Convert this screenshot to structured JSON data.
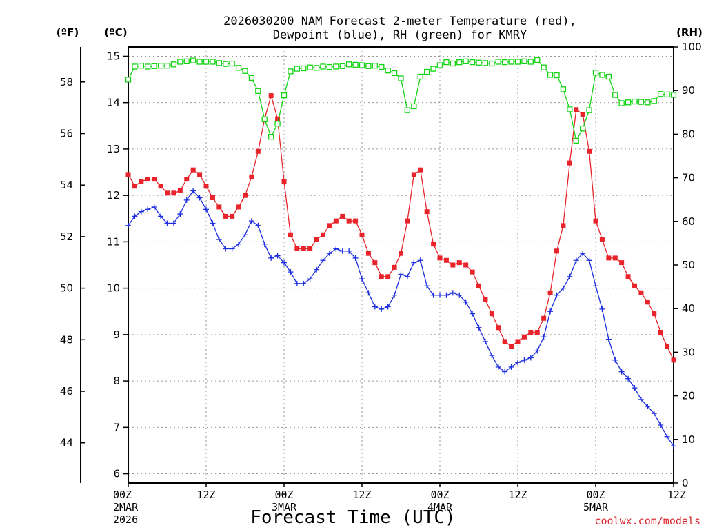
{
  "title_line1": "2026030200 NAM Forecast 2-meter Temperature (red),",
  "title_line2": "Dewpoint (blue), RH (green) for KMRY",
  "unit_f": "(ºF)",
  "unit_c": "(ºC)",
  "unit_rh": "(RH)",
  "xlabel": "Forecast Time (UTC)",
  "credit": "coolwx.com/models",
  "colors": {
    "temperature": "#e8232a",
    "dewpoint": "#1c2ee0",
    "rh": "#12d312",
    "grid": "#9a9a9a"
  },
  "chart_data": {
    "type": "line",
    "x_unit": "forecast hour from 2026-03-02 00Z, 1-hourly",
    "x_range": [
      0,
      84
    ],
    "x_ticks": [
      {
        "hour": 0,
        "label": "00Z",
        "date": "2MAR",
        "year": "2026"
      },
      {
        "hour": 12,
        "label": "12Z"
      },
      {
        "hour": 24,
        "label": "00Z",
        "date": "3MAR"
      },
      {
        "hour": 36,
        "label": "12Z"
      },
      {
        "hour": 48,
        "label": "00Z",
        "date": "4MAR"
      },
      {
        "hour": 60,
        "label": "12Z"
      },
      {
        "hour": 72,
        "label": "00Z",
        "date": "5MAR"
      },
      {
        "hour": 84,
        "label": "12Z"
      }
    ],
    "y_celsius": {
      "range": [
        5.8,
        15.2
      ],
      "ticks": [
        6,
        7,
        8,
        9,
        10,
        11,
        12,
        13,
        14,
        15
      ]
    },
    "y_fahrenheit": {
      "ticks": [
        44,
        46,
        48,
        50,
        52,
        54,
        56,
        58
      ]
    },
    "y_rh": {
      "range": [
        0,
        100
      ],
      "ticks": [
        0,
        10,
        20,
        30,
        40,
        50,
        60,
        70,
        80,
        90,
        100
      ]
    },
    "grid": true,
    "series": [
      {
        "key": "temperature",
        "axis": "celsius",
        "marker": "filled-square",
        "values": [
          12.45,
          12.2,
          12.3,
          12.35,
          12.35,
          12.2,
          12.05,
          12.05,
          12.1,
          12.35,
          12.55,
          12.45,
          12.2,
          11.95,
          11.75,
          11.55,
          11.55,
          11.75,
          12.0,
          12.4,
          12.95,
          13.65,
          14.15,
          13.65,
          12.3,
          11.15,
          10.85,
          10.85,
          10.85,
          11.05,
          11.15,
          11.35,
          11.45,
          11.55,
          11.45,
          11.45,
          11.15,
          10.75,
          10.55,
          10.25,
          10.25,
          10.45,
          10.75,
          11.45,
          12.45,
          12.55,
          11.65,
          10.95,
          10.65,
          10.6,
          10.5,
          10.55,
          10.5,
          10.35,
          10.05,
          9.75,
          9.45,
          9.15,
          8.85,
          8.75,
          8.85,
          8.95,
          9.05,
          9.05,
          9.35,
          9.9,
          10.8,
          11.35,
          12.7,
          13.85,
          13.75,
          12.95,
          11.45,
          11.05,
          10.65,
          10.65,
          10.55,
          10.25,
          10.05,
          9.9,
          9.7,
          9.45,
          9.05,
          8.75,
          8.45
        ]
      },
      {
        "key": "dewpoint",
        "axis": "celsius",
        "marker": "plus",
        "values": [
          11.35,
          11.55,
          11.65,
          11.7,
          11.75,
          11.55,
          11.4,
          11.4,
          11.6,
          11.9,
          12.1,
          11.95,
          11.7,
          11.4,
          11.05,
          10.85,
          10.85,
          10.95,
          11.15,
          11.45,
          11.35,
          10.95,
          10.65,
          10.7,
          10.55,
          10.35,
          10.1,
          10.1,
          10.2,
          10.4,
          10.6,
          10.75,
          10.85,
          10.8,
          10.8,
          10.65,
          10.2,
          9.9,
          9.6,
          9.55,
          9.6,
          9.85,
          10.3,
          10.25,
          10.55,
          10.6,
          10.05,
          9.85,
          9.85,
          9.85,
          9.9,
          9.85,
          9.7,
          9.45,
          9.15,
          8.85,
          8.55,
          8.3,
          8.2,
          8.3,
          8.4,
          8.45,
          8.5,
          8.65,
          8.95,
          9.5,
          9.85,
          10.0,
          10.25,
          10.6,
          10.75,
          10.6,
          10.05,
          9.55,
          8.9,
          8.45,
          8.2,
          8.05,
          7.85,
          7.6,
          7.45,
          7.3,
          7.05,
          6.8,
          6.6
        ]
      },
      {
        "key": "rh",
        "axis": "rh",
        "marker": "open-square",
        "values": [
          92.5,
          95.5,
          95.7,
          95.5,
          95.6,
          95.7,
          95.7,
          96.0,
          96.6,
          96.7,
          96.9,
          96.6,
          96.6,
          96.6,
          96.3,
          96.1,
          96.2,
          95.2,
          94.5,
          92.9,
          89.9,
          83.4,
          79.4,
          82.4,
          88.9,
          94.4,
          95.0,
          95.1,
          95.3,
          95.2,
          95.5,
          95.4,
          95.5,
          95.6,
          96.0,
          95.9,
          95.8,
          95.6,
          95.7,
          95.4,
          94.6,
          94.0,
          92.8,
          85.5,
          86.4,
          93.2,
          94.3,
          95.0,
          95.8,
          96.5,
          96.2,
          96.5,
          96.7,
          96.5,
          96.4,
          96.3,
          96.2,
          96.6,
          96.5,
          96.6,
          96.6,
          96.7,
          96.6,
          97.0,
          95.3,
          93.6,
          93.5,
          90.3,
          85.7,
          78.5,
          81.3,
          85.5,
          94.1,
          93.6,
          93.2,
          89.0,
          87.1,
          87.3,
          87.5,
          87.4,
          87.3,
          87.6,
          89.2,
          89.1,
          89.0
        ]
      }
    ]
  }
}
